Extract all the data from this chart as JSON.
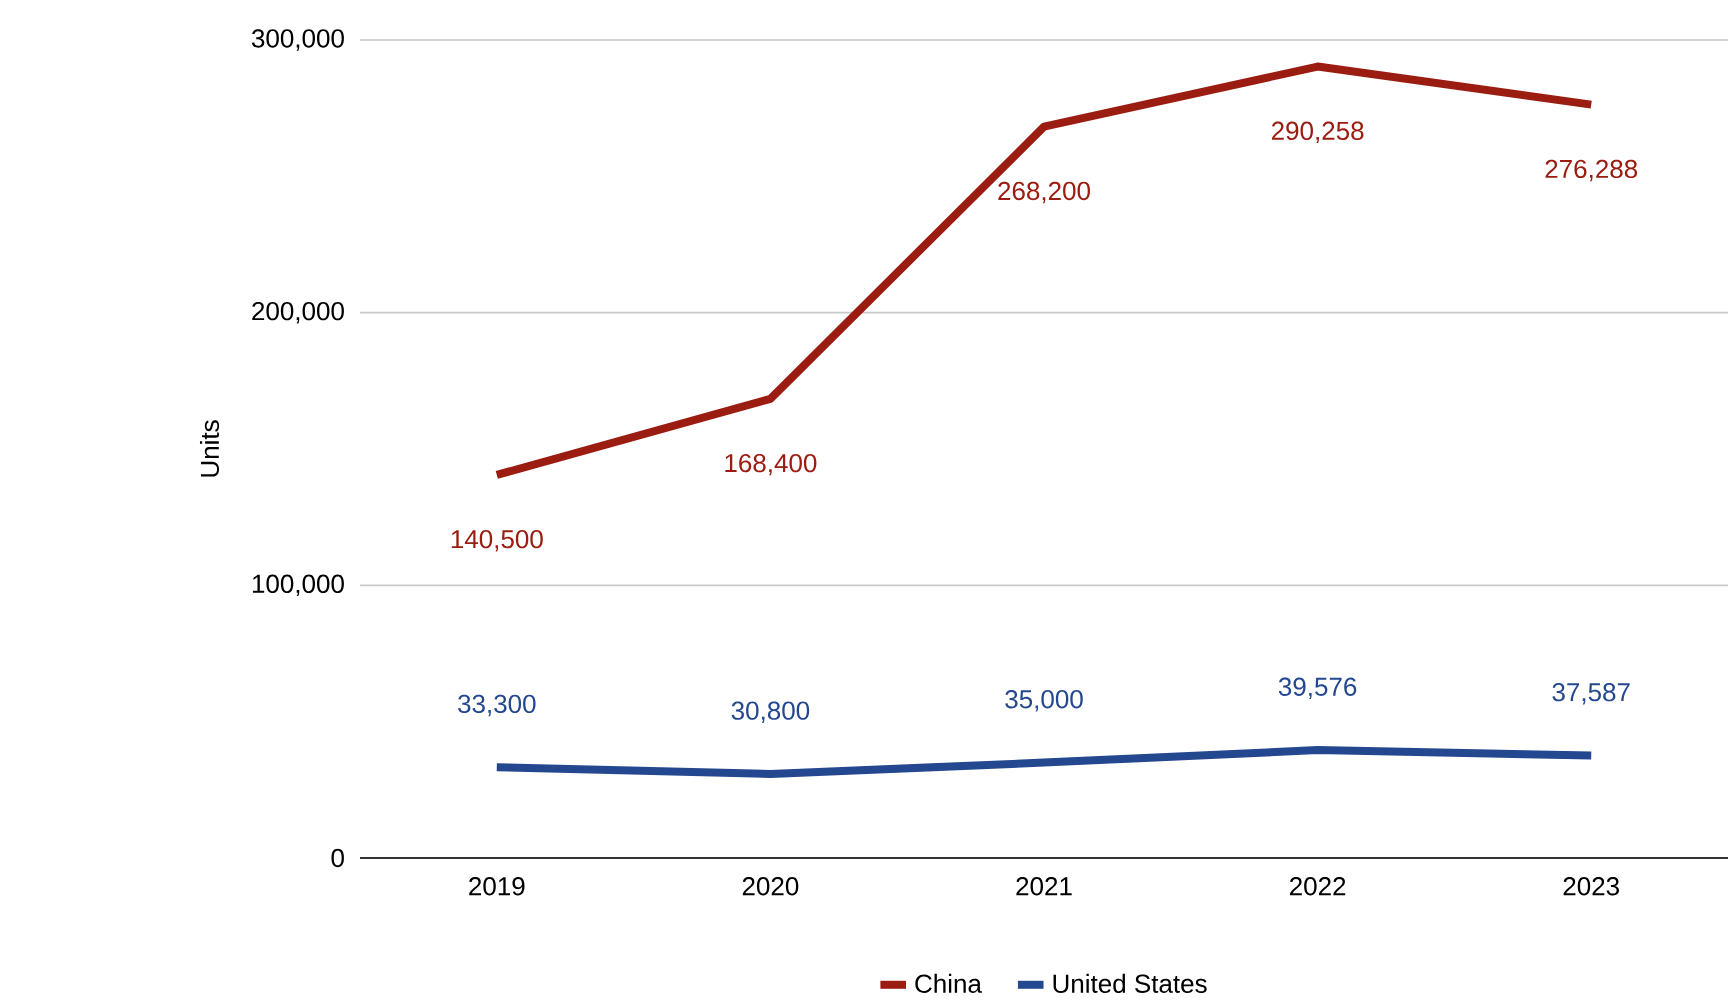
{
  "chart_data": {
    "type": "line",
    "ylabel": "Units",
    "categories": [
      "2019",
      "2020",
      "2021",
      "2022",
      "2023"
    ],
    "series": [
      {
        "name": "China",
        "color": "#9b1c10",
        "values": [
          140500,
          168400,
          268200,
          290258,
          276288
        ],
        "value_labels": [
          "140,500",
          "168,400",
          "268,200",
          "290,258",
          "276,288"
        ]
      },
      {
        "name": "United States",
        "color": "#24488f",
        "values": [
          33300,
          30800,
          35000,
          39576,
          37587
        ],
        "value_labels": [
          "33,300",
          "30,800",
          "35,000",
          "39,576",
          "37,587"
        ]
      }
    ],
    "ylim": [
      0,
      300000
    ],
    "yticks": [
      0,
      {
        "value": 100000,
        "label": "100,000"
      },
      {
        "value": 200000,
        "label": "200,000"
      },
      {
        "value": 300000,
        "label": "300,000"
      }
    ],
    "grid": "y",
    "legend": "bottom",
    "marker": "none",
    "line_style": "solid"
  }
}
